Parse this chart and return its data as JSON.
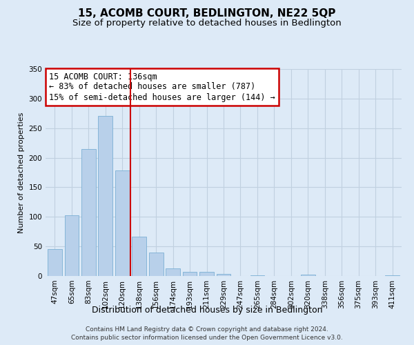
{
  "title": "15, ACOMB COURT, BEDLINGTON, NE22 5QP",
  "subtitle": "Size of property relative to detached houses in Bedlington",
  "xlabel": "Distribution of detached houses by size in Bedlington",
  "ylabel": "Number of detached properties",
  "bar_labels": [
    "47sqm",
    "65sqm",
    "83sqm",
    "102sqm",
    "120sqm",
    "138sqm",
    "156sqm",
    "174sqm",
    "193sqm",
    "211sqm",
    "229sqm",
    "247sqm",
    "265sqm",
    "284sqm",
    "302sqm",
    "320sqm",
    "338sqm",
    "356sqm",
    "375sqm",
    "393sqm",
    "411sqm"
  ],
  "bar_values": [
    46,
    103,
    215,
    271,
    178,
    66,
    40,
    13,
    7,
    7,
    3,
    0,
    1,
    0,
    0,
    2,
    0,
    0,
    0,
    0,
    1
  ],
  "bar_color": "#b8d0ea",
  "bar_edge_color": "#7aafd4",
  "annotation_text_lines": [
    "15 ACOMB COURT: 136sqm",
    "← 83% of detached houses are smaller (787)",
    "15% of semi-detached houses are larger (144) →"
  ],
  "annotation_box_color": "#ffffff",
  "annotation_box_edge_color": "#cc0000",
  "vline_x": 4.5,
  "vline_color": "#cc0000",
  "grid_color": "#c0d0e0",
  "background_color": "#ddeaf7",
  "ylim_max": 350,
  "yticks": [
    0,
    50,
    100,
    150,
    200,
    250,
    300,
    350
  ],
  "footer_line1": "Contains HM Land Registry data © Crown copyright and database right 2024.",
  "footer_line2": "Contains public sector information licensed under the Open Government Licence v3.0.",
  "title_fontsize": 11,
  "subtitle_fontsize": 9.5,
  "xlabel_fontsize": 9,
  "ylabel_fontsize": 8,
  "tick_fontsize": 7.5,
  "annotation_fontsize": 8.5,
  "footer_fontsize": 6.5
}
